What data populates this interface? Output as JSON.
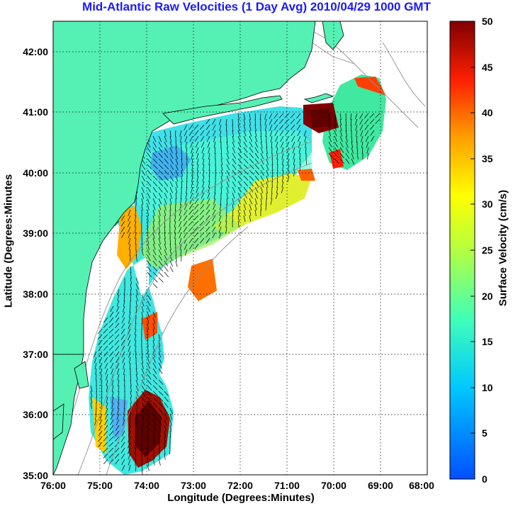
{
  "title": "Mid-Atlantic Raw Velocities (1 Day Avg) 2010/04/29 1000 GMT",
  "xlabel": "Longitude (Degrees:Minutes)",
  "ylabel": "Latitude (Degrees:Minutes",
  "colorbar_label": "Surface Velocity (cm/s)",
  "colors": {
    "title": "#1a1aff",
    "land": "#55f0b4",
    "velocity_low": "#0050ff",
    "velocity_high": "#800000",
    "bathymetry": "#909090"
  },
  "chart_data": {
    "type": "heatmap",
    "x_ticks": [
      "76:00",
      "75:00",
      "74:00",
      "73:00",
      "72:00",
      "71:00",
      "70:00",
      "69:00",
      "68:00"
    ],
    "y_ticks": [
      "35:00",
      "36:00",
      "37:00",
      "38:00",
      "39:00",
      "40:00",
      "41:00",
      "42:00"
    ],
    "xlim": [
      -76,
      -68
    ],
    "ylim": [
      35,
      42.5
    ],
    "grid": "dotted",
    "colorbar": {
      "ticks": [
        "0",
        "5",
        "10",
        "15",
        "20",
        "25",
        "30",
        "35",
        "40",
        "45",
        "50"
      ],
      "range": [
        0,
        50
      ],
      "colormap": "jet"
    }
  }
}
